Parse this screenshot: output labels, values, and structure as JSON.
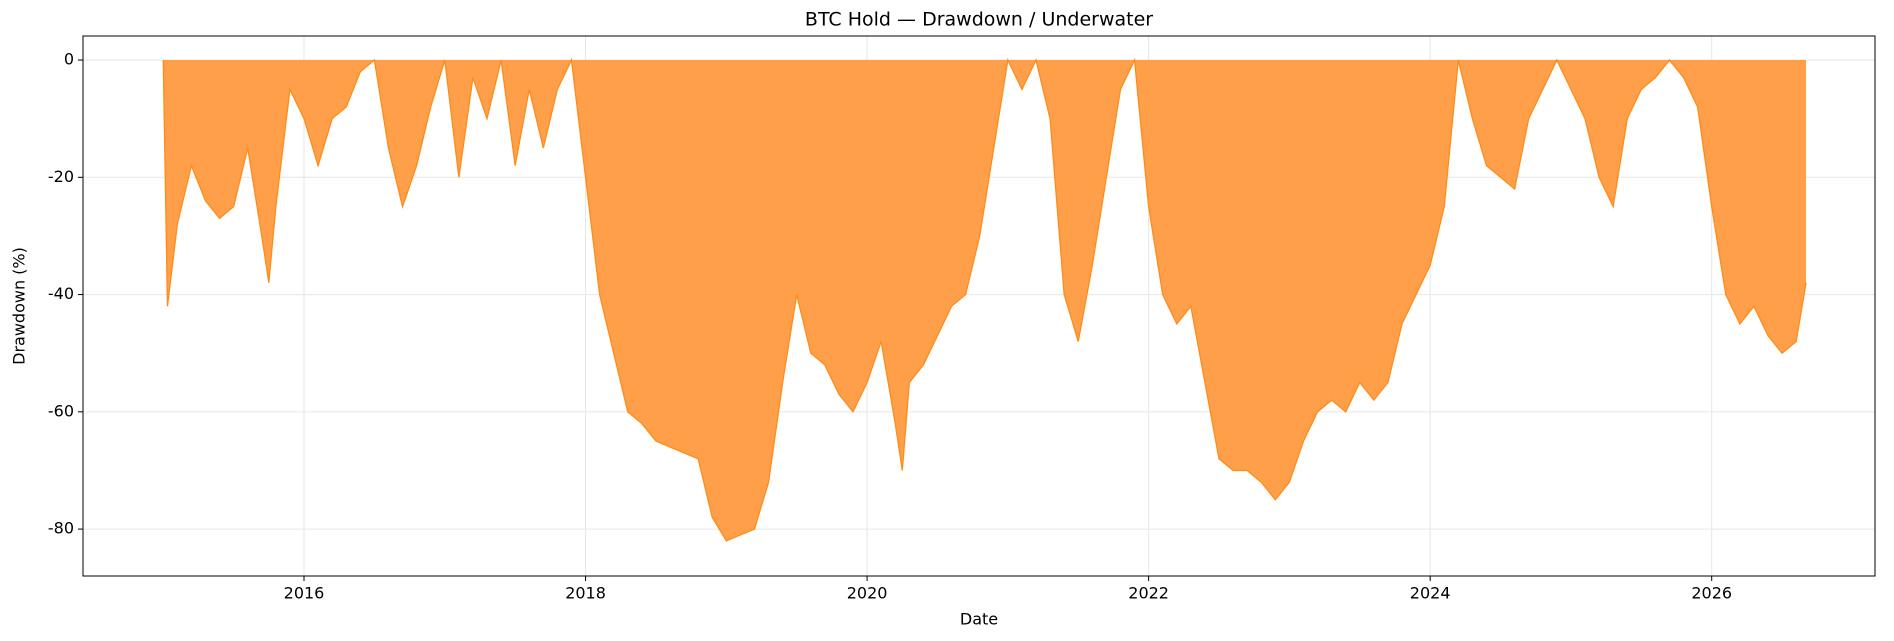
{
  "chart_data": {
    "type": "area",
    "title": "BTC Hold — Drawdown / Underwater",
    "xlabel": "Date",
    "ylabel": "Drawdown (%)",
    "x": [
      2015.0,
      2015.03,
      2015.1,
      2015.2,
      2015.3,
      2015.4,
      2015.5,
      2015.6,
      2015.7,
      2015.75,
      2015.8,
      2015.9,
      2016.0,
      2016.1,
      2016.2,
      2016.3,
      2016.4,
      2016.5,
      2016.6,
      2016.7,
      2016.8,
      2016.9,
      2017.0,
      2017.1,
      2017.2,
      2017.3,
      2017.4,
      2017.5,
      2017.6,
      2017.7,
      2017.8,
      2017.9,
      2018.0,
      2018.1,
      2018.2,
      2018.3,
      2018.4,
      2018.5,
      2018.6,
      2018.7,
      2018.8,
      2018.9,
      2019.0,
      2019.1,
      2019.2,
      2019.3,
      2019.4,
      2019.5,
      2019.6,
      2019.7,
      2019.8,
      2019.9,
      2020.0,
      2020.1,
      2020.2,
      2020.25,
      2020.3,
      2020.4,
      2020.5,
      2020.6,
      2020.7,
      2020.8,
      2020.9,
      2021.0,
      2021.1,
      2021.2,
      2021.3,
      2021.4,
      2021.5,
      2021.6,
      2021.7,
      2021.8,
      2021.9,
      2022.0,
      2022.1,
      2022.2,
      2022.3,
      2022.4,
      2022.5,
      2022.6,
      2022.7,
      2022.8,
      2022.9,
      2023.0,
      2023.1,
      2023.2,
      2023.3,
      2023.4,
      2023.5,
      2023.6,
      2023.7,
      2023.8,
      2023.9,
      2024.0,
      2024.1,
      2024.2,
      2024.3,
      2024.4,
      2024.5,
      2024.6,
      2024.7,
      2024.8,
      2024.9,
      2025.0,
      2025.1,
      2025.2,
      2025.3,
      2025.4,
      2025.5,
      2025.6,
      2025.7,
      2025.8,
      2025.9,
      2026.0,
      2026.1,
      2026.2,
      2026.3,
      2026.4,
      2026.5,
      2026.6,
      2026.67
    ],
    "values": [
      0,
      -42,
      -28,
      -18,
      -24,
      -27,
      -25,
      -15,
      -30,
      -38,
      -25,
      -5,
      -10,
      -18,
      -10,
      -8,
      -2,
      0,
      -15,
      -25,
      -18,
      -8,
      0,
      -20,
      -3,
      -10,
      0,
      -18,
      -5,
      -15,
      -5,
      0,
      -20,
      -40,
      -50,
      -60,
      -62,
      -65,
      -66,
      -67,
      -68,
      -78,
      -82,
      -81,
      -80,
      -72,
      -55,
      -40,
      -50,
      -52,
      -57,
      -60,
      -55,
      -48,
      -62,
      -70,
      -55,
      -52,
      -47,
      -42,
      -40,
      -30,
      -15,
      0,
      -5,
      0,
      -10,
      -40,
      -48,
      -35,
      -20,
      -5,
      0,
      -25,
      -40,
      -45,
      -42,
      -55,
      -68,
      -70,
      -70,
      -72,
      -75,
      -72,
      -65,
      -60,
      -58,
      -60,
      -55,
      -58,
      -55,
      -45,
      -40,
      -35,
      -25,
      0,
      -10,
      -18,
      -20,
      -22,
      -10,
      -5,
      0,
      -5,
      -10,
      -20,
      -25,
      -10,
      -5,
      -3,
      0,
      -3,
      -8,
      -25,
      -40,
      -45,
      -42,
      -47,
      -50,
      -48,
      -38
    ],
    "color": "#ff9f4a",
    "line_color": "#ff8c1a",
    "xlim": [
      2014.43,
      2027.16
    ],
    "xticks": [
      2016,
      2018,
      2020,
      2022,
      2024,
      2026
    ],
    "ylim": [
      -88,
      4.1
    ],
    "yticks": [
      0,
      -20,
      -40,
      -60,
      -80
    ],
    "grid": true
  }
}
